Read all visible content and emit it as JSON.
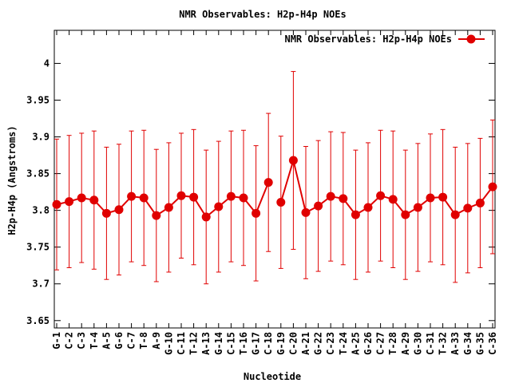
{
  "chart_data": {
    "type": "line",
    "title": "NMR Observables: H2p-H4p NOEs",
    "xlabel": "Nucleotide",
    "ylabel": "H2p-H4p (Angstroms)",
    "ylim": [
      3.64,
      4.045
    ],
    "yticks": [
      3.65,
      3.7,
      3.75,
      3.8,
      3.85,
      3.9,
      3.95,
      4
    ],
    "ytick_labels": [
      "3.65",
      "3.7",
      "3.75",
      "3.8",
      "3.85",
      "3.9",
      "3.95",
      "4"
    ],
    "grid": false,
    "legend_position": "top-right",
    "categories": [
      "G-1",
      "C-2",
      "C-3",
      "T-4",
      "A-5",
      "G-6",
      "C-7",
      "T-8",
      "A-9",
      "G-10",
      "C-11",
      "T-12",
      "A-13",
      "G-14",
      "C-15",
      "T-16",
      "G-17",
      "C-18",
      "G-19",
      "C-20",
      "A-21",
      "G-22",
      "C-23",
      "T-24",
      "A-25",
      "G-26",
      "C-27",
      "T-28",
      "A-29",
      "G-30",
      "C-31",
      "T-32",
      "A-33",
      "G-34",
      "G-35",
      "C-36"
    ],
    "series": [
      {
        "name": "NMR Observables: H2p-H4p NOEs",
        "color": "#e00000",
        "segments": [
          [
            0,
            17
          ],
          [
            18,
            35
          ]
        ],
        "values": [
          3.808,
          3.812,
          3.817,
          3.814,
          3.796,
          3.801,
          3.819,
          3.817,
          3.793,
          3.804,
          3.82,
          3.818,
          3.791,
          3.805,
          3.819,
          3.817,
          3.796,
          3.838,
          3.811,
          3.868,
          3.797,
          3.806,
          3.819,
          3.816,
          3.794,
          3.804,
          3.82,
          3.815,
          3.794,
          3.804,
          3.817,
          3.818,
          3.794,
          3.803,
          3.81,
          3.832
        ],
        "errors": [
          0.089,
          0.09,
          0.088,
          0.094,
          0.09,
          0.089,
          0.089,
          0.092,
          0.09,
          0.088,
          0.085,
          0.092,
          0.091,
          0.089,
          0.089,
          0.092,
          0.092,
          0.094,
          0.09,
          0.121,
          0.09,
          0.089,
          0.088,
          0.09,
          0.088,
          0.088,
          0.089,
          0.093,
          0.088,
          0.087,
          0.087,
          0.092,
          0.092,
          0.088,
          0.088,
          0.091
        ]
      }
    ]
  }
}
